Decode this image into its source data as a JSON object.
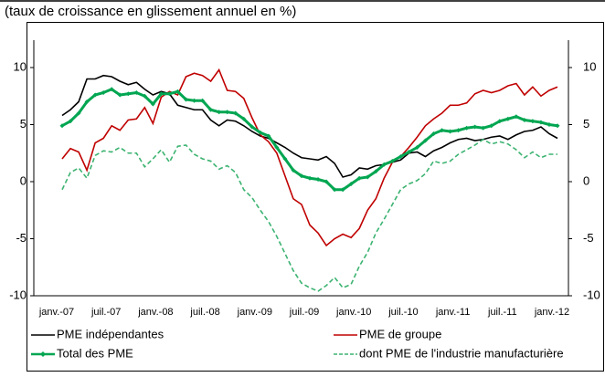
{
  "chart_data": {
    "type": "line",
    "title": "(taux de croissance en glissement annuel en %)",
    "categories": [
      "janv.-07",
      null,
      null,
      null,
      null,
      null,
      "juil.-07",
      null,
      null,
      null,
      null,
      null,
      "janv.-08",
      null,
      null,
      null,
      null,
      null,
      "juil.-08",
      null,
      null,
      null,
      null,
      null,
      "janv.-09",
      null,
      null,
      null,
      null,
      null,
      "juil.-09",
      null,
      null,
      null,
      null,
      null,
      "janv.-10",
      null,
      null,
      null,
      null,
      null,
      "juil.-10",
      null,
      null,
      null,
      null,
      null,
      "janv.-11",
      null,
      null,
      null,
      null,
      null,
      "juil.-11",
      null,
      null,
      null,
      null,
      null,
      "janv.-12"
    ],
    "series": [
      {
        "name": "PME indépendantes",
        "color": "#000000",
        "values": [
          5.8,
          6.3,
          7.0,
          9.0,
          9.0,
          9.3,
          9.2,
          8.8,
          8.5,
          8.7,
          8.1,
          7.6,
          7.9,
          7.7,
          6.7,
          6.5,
          6.3,
          6.3,
          5.4,
          4.9,
          5.4,
          5.3,
          4.9,
          4.4,
          4.0,
          3.8,
          3.4,
          3.0,
          2.5,
          2.1,
          2.0,
          1.9,
          2.2,
          1.6,
          0.4,
          0.6,
          1.2,
          1.1,
          1.4,
          1.5,
          1.7,
          1.9,
          2.5,
          2.6,
          2.2,
          2.7,
          3.0,
          3.4,
          3.7,
          3.8,
          3.6,
          3.7,
          3.9,
          4.0,
          3.7,
          4.1,
          4.4,
          4.5,
          4.8,
          4.2,
          3.8
        ]
      },
      {
        "name": "PME de groupe",
        "color": "#c00000",
        "values": [
          2.0,
          2.9,
          2.6,
          1.0,
          3.4,
          3.8,
          4.9,
          4.5,
          5.4,
          5.5,
          6.5,
          5.1,
          7.4,
          7.9,
          7.6,
          9.2,
          9.5,
          9.3,
          8.8,
          9.8,
          8.0,
          7.9,
          7.3,
          5.6,
          4.1,
          3.5,
          2.5,
          0.5,
          -1.5,
          -2.0,
          -3.8,
          -4.5,
          -5.6,
          -5.0,
          -4.6,
          -4.9,
          -4.1,
          -2.5,
          -1.5,
          0.3,
          1.7,
          2.2,
          3.0,
          3.9,
          4.9,
          5.5,
          6.0,
          6.7,
          6.7,
          6.9,
          7.7,
          8.0,
          7.8,
          8.0,
          8.4,
          8.6,
          7.6,
          8.3,
          7.5,
          8.0,
          8.3
        ]
      },
      {
        "name": "Total des PME",
        "color": "#00a651",
        "values": [
          4.9,
          5.3,
          6.0,
          7.0,
          7.6,
          7.8,
          8.1,
          7.6,
          7.7,
          7.8,
          7.5,
          6.8,
          7.7,
          7.7,
          7.9,
          7.2,
          7.1,
          7.1,
          6.3,
          6.1,
          6.1,
          6.0,
          5.5,
          4.8,
          4.3,
          4.0,
          3.0,
          2.0,
          1.0,
          0.5,
          0.3,
          0.2,
          0.0,
          -0.7,
          -0.7,
          -0.2,
          0.3,
          0.4,
          0.9,
          1.5,
          1.8,
          2.2,
          2.6,
          3.0,
          3.6,
          4.2,
          4.5,
          4.4,
          4.5,
          4.7,
          4.8,
          4.7,
          4.9,
          5.3,
          5.5,
          5.7,
          5.4,
          5.3,
          5.2,
          5.0,
          4.9
        ]
      },
      {
        "name": "dont PME de l'industrie manufacturière",
        "color": "#3cb371",
        "dashed": true,
        "values": [
          -0.7,
          0.8,
          1.2,
          0.3,
          2.3,
          2.7,
          2.6,
          3.0,
          2.5,
          2.5,
          1.3,
          2.0,
          2.8,
          1.7,
          3.1,
          3.2,
          2.4,
          2.0,
          1.8,
          1.1,
          1.4,
          0.8,
          -0.7,
          -1.4,
          -2.5,
          -3.5,
          -4.8,
          -6.3,
          -7.8,
          -8.9,
          -9.3,
          -9.6,
          -9.1,
          -8.4,
          -9.3,
          -9.0,
          -7.4,
          -6.2,
          -4.5,
          -3.3,
          -2.0,
          -0.7,
          -0.2,
          0.1,
          0.7,
          1.8,
          1.6,
          1.8,
          2.4,
          2.8,
          3.2,
          3.7,
          3.3,
          3.5,
          3.3,
          2.8,
          2.1,
          2.6,
          2.1,
          2.4,
          2.4
        ]
      }
    ],
    "ylim": [
      -10,
      10
    ],
    "yticks": [
      -10,
      -5,
      0,
      5,
      10
    ],
    "y2lim": [
      -10,
      10
    ],
    "y2ticks": [
      -10,
      -5,
      0,
      5,
      10
    ],
    "grid": false,
    "legend": "bottom"
  }
}
